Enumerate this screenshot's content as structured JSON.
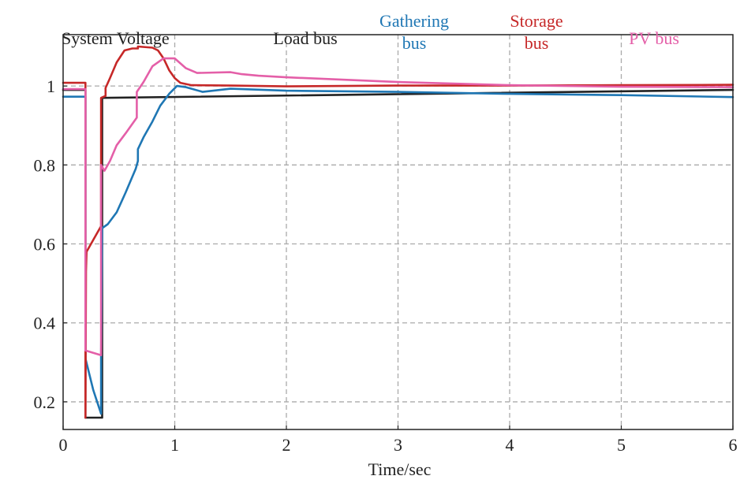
{
  "chart_data": {
    "type": "line",
    "title": "System Voltage",
    "xlabel": "Time/sec",
    "ylabel": "",
    "xlim": [
      0,
      6
    ],
    "ylim": [
      0.13,
      1.13
    ],
    "x_ticks": [
      0,
      1,
      2,
      3,
      4,
      5,
      6
    ],
    "y_ticks": [
      0.2,
      0.4,
      0.6,
      0.8,
      1
    ],
    "grid": true,
    "legend_placement": "top, inline with title",
    "series": [
      {
        "name": "Load bus",
        "color": "#222222",
        "points": [
          [
            0,
            0.99
          ],
          [
            0.2,
            0.99
          ],
          [
            0.2,
            0.16
          ],
          [
            0.35,
            0.16
          ],
          [
            0.35,
            0.97
          ],
          [
            6,
            0.99
          ]
        ]
      },
      {
        "name": "Gathering bus",
        "color": "#1f77b4",
        "points": [
          [
            0,
            0.973
          ],
          [
            0.2,
            0.973
          ],
          [
            0.2,
            0.31
          ],
          [
            0.27,
            0.23
          ],
          [
            0.34,
            0.17
          ],
          [
            0.34,
            0.31
          ],
          [
            0.35,
            0.64
          ],
          [
            0.4,
            0.65
          ],
          [
            0.48,
            0.68
          ],
          [
            0.56,
            0.73
          ],
          [
            0.65,
            0.79
          ],
          [
            0.67,
            0.81
          ],
          [
            0.67,
            0.84
          ],
          [
            0.72,
            0.87
          ],
          [
            0.8,
            0.91
          ],
          [
            0.87,
            0.95
          ],
          [
            0.95,
            0.98
          ],
          [
            1.02,
            1.0
          ],
          [
            1.1,
            0.997
          ],
          [
            1.25,
            0.985
          ],
          [
            1.5,
            0.993
          ],
          [
            2.0,
            0.988
          ],
          [
            3.0,
            0.985
          ],
          [
            4.0,
            0.98
          ],
          [
            5.0,
            0.977
          ],
          [
            6.0,
            0.972
          ]
        ]
      },
      {
        "name": "Storage bus",
        "color": "#c62828",
        "points": [
          [
            0,
            1.008
          ],
          [
            0.2,
            1.008
          ],
          [
            0.2,
            0.16
          ],
          [
            0.205,
            0.53
          ],
          [
            0.21,
            0.58
          ],
          [
            0.3,
            0.625
          ],
          [
            0.34,
            0.645
          ],
          [
            0.34,
            0.97
          ],
          [
            0.38,
            0.975
          ],
          [
            0.38,
            0.995
          ],
          [
            0.42,
            1.02
          ],
          [
            0.48,
            1.06
          ],
          [
            0.55,
            1.09
          ],
          [
            0.62,
            1.095
          ],
          [
            0.67,
            1.095
          ],
          [
            0.67,
            1.1
          ],
          [
            0.8,
            1.097
          ],
          [
            0.85,
            1.09
          ],
          [
            0.9,
            1.07
          ],
          [
            0.95,
            1.04
          ],
          [
            1.0,
            1.02
          ],
          [
            1.05,
            1.008
          ],
          [
            1.15,
            1.002
          ],
          [
            1.5,
            1.001
          ],
          [
            2.0,
            0.999
          ],
          [
            3.0,
            1.001
          ],
          [
            4.0,
            1.001
          ],
          [
            5.0,
            1.002
          ],
          [
            6.0,
            1.003
          ]
        ]
      },
      {
        "name": "PV bus",
        "color": "#e45fa8",
        "points": [
          [
            0,
            0.992
          ],
          [
            0.2,
            0.992
          ],
          [
            0.2,
            0.33
          ],
          [
            0.34,
            0.318
          ],
          [
            0.34,
            0.8
          ],
          [
            0.37,
            0.785
          ],
          [
            0.42,
            0.81
          ],
          [
            0.48,
            0.85
          ],
          [
            0.56,
            0.88
          ],
          [
            0.66,
            0.92
          ],
          [
            0.66,
            0.985
          ],
          [
            0.72,
            1.01
          ],
          [
            0.8,
            1.05
          ],
          [
            0.9,
            1.07
          ],
          [
            1.0,
            1.07
          ],
          [
            1.1,
            1.045
          ],
          [
            1.2,
            1.033
          ],
          [
            1.5,
            1.035
          ],
          [
            1.6,
            1.03
          ],
          [
            1.75,
            1.026
          ],
          [
            2.0,
            1.022
          ],
          [
            3.0,
            1.01
          ],
          [
            4.0,
            1.002
          ],
          [
            5.0,
            0.998
          ],
          [
            6.0,
            0.997
          ]
        ]
      }
    ]
  }
}
